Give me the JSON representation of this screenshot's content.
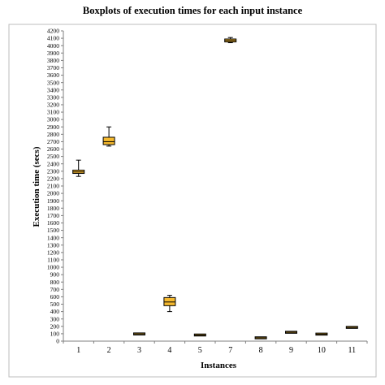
{
  "chart_data": {
    "type": "boxplot",
    "title": "Boxplots of execution times for each input instance",
    "xlabel": "Instances",
    "ylabel": "Execution time (secs)",
    "ylim": [
      0,
      4200
    ],
    "ytick_step": 100,
    "grid": false,
    "legend": "none",
    "box_color": "#f5b92e",
    "categories": [
      "1",
      "2",
      "3",
      "4",
      "5",
      "7",
      "8",
      "9",
      "10",
      "11"
    ],
    "boxes": [
      {
        "category": "1",
        "min": 2230,
        "q1": 2270,
        "median": 2290,
        "q3": 2315,
        "max": 2450
      },
      {
        "category": "2",
        "min": 2640,
        "q1": 2660,
        "median": 2700,
        "q3": 2760,
        "max": 2900
      },
      {
        "category": "3",
        "min": 90,
        "q1": 92,
        "median": 97,
        "q3": 103,
        "max": 108
      },
      {
        "category": "4",
        "min": 400,
        "q1": 480,
        "median": 530,
        "q3": 590,
        "max": 620
      },
      {
        "category": "5",
        "min": 75,
        "q1": 78,
        "median": 82,
        "q3": 88,
        "max": 92
      },
      {
        "category": "7",
        "min": 4040,
        "q1": 4050,
        "median": 4070,
        "q3": 4090,
        "max": 4110
      },
      {
        "category": "8",
        "min": 40,
        "q1": 42,
        "median": 45,
        "q3": 48,
        "max": 50
      },
      {
        "category": "9",
        "min": 112,
        "q1": 115,
        "median": 120,
        "q3": 125,
        "max": 128
      },
      {
        "category": "10",
        "min": 88,
        "q1": 90,
        "median": 95,
        "q3": 100,
        "max": 103
      },
      {
        "category": "11",
        "min": 178,
        "q1": 182,
        "median": 185,
        "q3": 190,
        "max": 193
      }
    ]
  }
}
